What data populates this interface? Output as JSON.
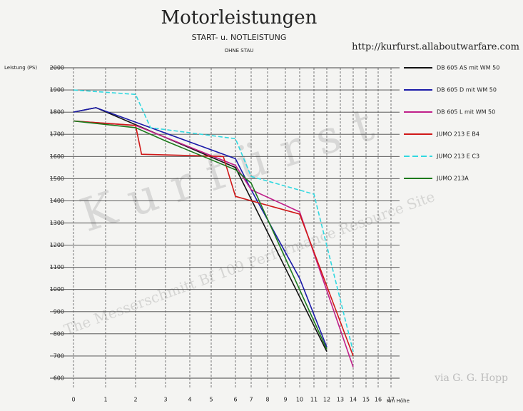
{
  "chart_data": {
    "type": "line",
    "title": "Motorleistungen",
    "subtitle": "START- u. NOTLEISTUNG",
    "note": "OHNE STAU",
    "source_url": "http://kurfurst.allaboutwarfare.com",
    "credit": "via G. G. Hopp",
    "watermark": "Kurfürst",
    "watermark_subtitle": "The Messerschmitt Bf 109 Performance Resource Site",
    "y_label": "Leistung (PS)",
    "x_label": "Km Höhe",
    "xlim": [
      0,
      17
    ],
    "xticks": [
      0,
      1,
      2,
      3,
      4,
      5,
      6,
      7,
      8,
      9,
      10,
      11,
      12,
      13,
      14,
      15,
      16,
      17
    ],
    "ylim": [
      600,
      2000
    ],
    "yticks": [
      600,
      700,
      800,
      900,
      1000,
      1100,
      1200,
      1300,
      1400,
      1500,
      1600,
      1700,
      1800,
      1900,
      2000
    ],
    "grid": true,
    "series": [
      {
        "name": "DB 605 AS mit WM 50",
        "color": "#111111",
        "dash": false,
        "x": [
          0,
          0.7,
          6,
          12
        ],
        "values": [
          1800,
          1820,
          1550,
          720
        ]
      },
      {
        "name": "DB 605 D mit WM 50",
        "color": "#1a1aa8",
        "dash": false,
        "x": [
          0,
          0.7,
          6,
          7,
          10,
          12
        ],
        "values": [
          1800,
          1820,
          1590,
          1450,
          1050,
          740
        ]
      },
      {
        "name": "DB 605 L mit WM 50",
        "color": "#c0208a",
        "dash": false,
        "x": [
          0,
          2,
          6,
          7,
          10,
          14
        ],
        "values": [
          1760,
          1740,
          1560,
          1450,
          1350,
          650
        ]
      },
      {
        "name": "JUMO 213 E B4",
        "color": "#d01818",
        "dash": false,
        "x": [
          0,
          2,
          2.2,
          5.5,
          6,
          7,
          10,
          14
        ],
        "values": [
          1760,
          1740,
          1610,
          1600,
          1420,
          1400,
          1340,
          700
        ]
      },
      {
        "name": "JUMO 213 E C3",
        "color": "#30d8e0",
        "dash": true,
        "x": [
          0,
          2,
          2.5,
          6,
          7,
          11,
          14
        ],
        "values": [
          1900,
          1880,
          1730,
          1680,
          1510,
          1430,
          720
        ]
      },
      {
        "name": "JUMO 213A",
        "color": "#1c7a1c",
        "dash": false,
        "x": [
          0,
          2,
          3,
          6,
          7,
          12
        ],
        "values": [
          1760,
          1730,
          1670,
          1540,
          1480,
          730
        ]
      }
    ]
  }
}
